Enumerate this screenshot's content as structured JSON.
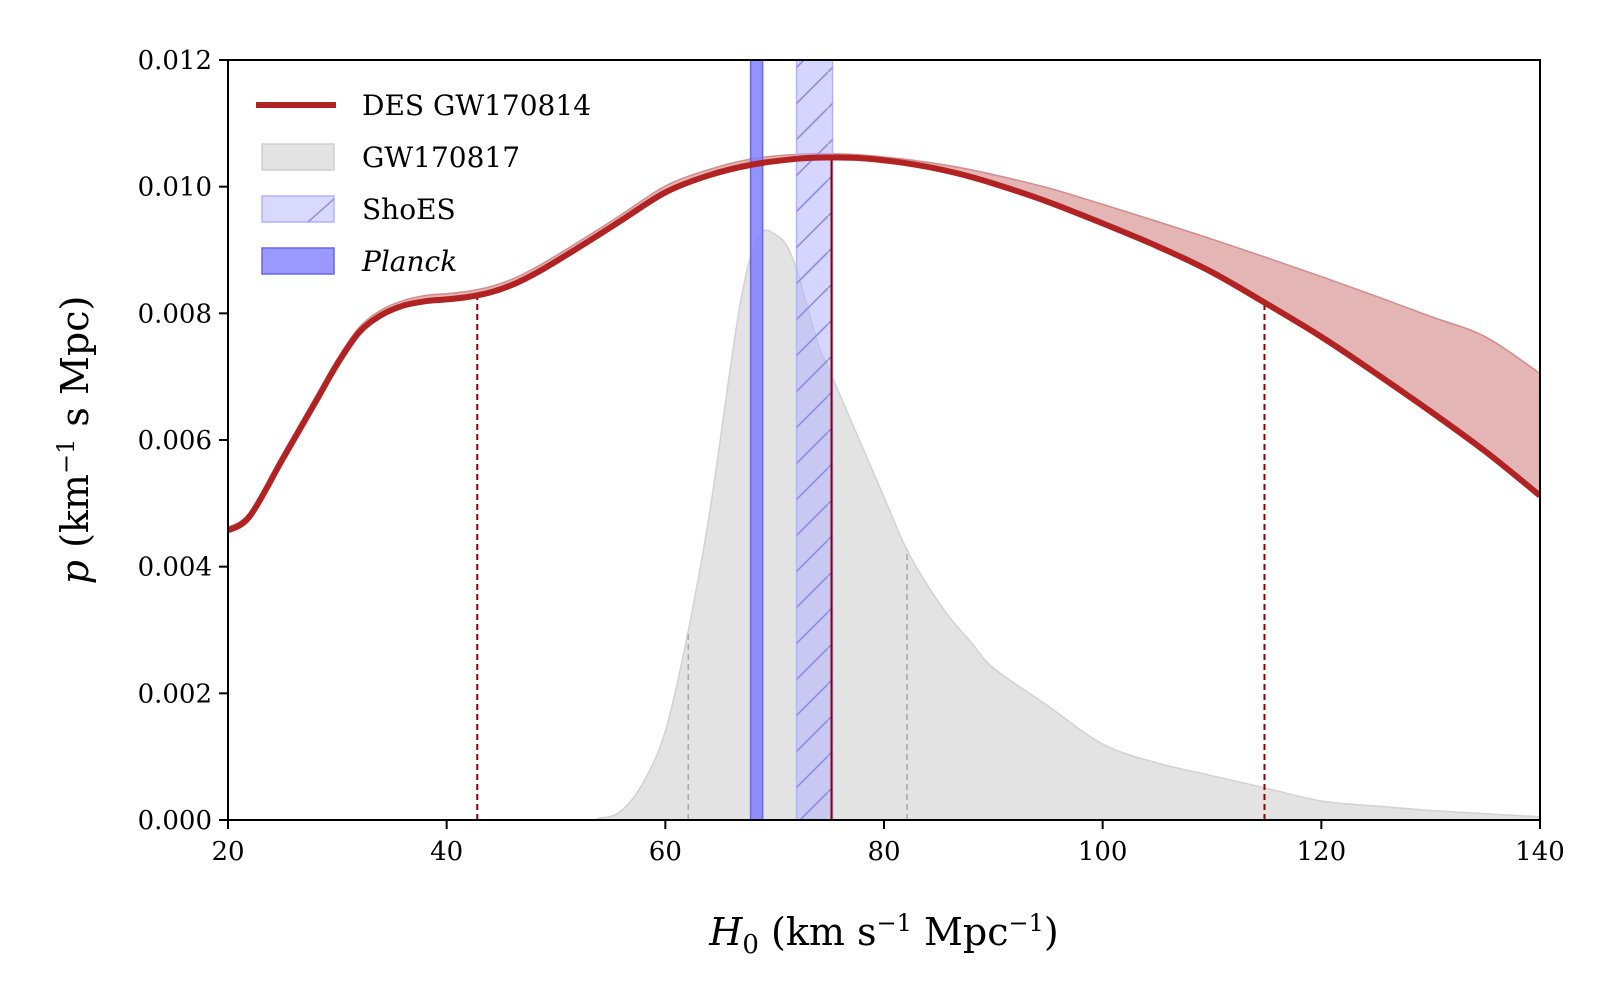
{
  "chart_data": {
    "type": "line",
    "xlabel": "H_0 (km s^-1 Mpc^-1)",
    "xlabel_parts": {
      "main": "H",
      "sub": "0",
      "open": " (km s",
      "exp1": "−1",
      "mid": " Mpc",
      "exp2": "−1",
      "close": ")"
    },
    "ylabel": "p (km^-1 s Mpc)",
    "ylabel_parts": {
      "main": "p",
      "open": " (km",
      "exp": "−1",
      "rest": " s Mpc)"
    },
    "xlim": [
      20,
      140
    ],
    "ylim": [
      0,
      0.012
    ],
    "xticks": [
      20,
      40,
      60,
      80,
      100,
      120,
      140
    ],
    "xtick_labels": [
      "20",
      "40",
      "60",
      "80",
      "100",
      "120",
      "140"
    ],
    "yticks": [
      0,
      0.002,
      0.004,
      0.006,
      0.008,
      0.01,
      0.012
    ],
    "ytick_labels": [
      "0.000",
      "0.002",
      "0.004",
      "0.006",
      "0.008",
      "0.010",
      "0.012"
    ],
    "grid": false,
    "legend_position": "top-left",
    "legend": [
      {
        "label": "DES GW170814",
        "kind": "line",
        "italic": false
      },
      {
        "label": "GW170817",
        "kind": "patch",
        "italic": false
      },
      {
        "label": "ShoES",
        "kind": "hatched-band",
        "italic": false
      },
      {
        "label": "Planck",
        "kind": "band",
        "italic": true
      }
    ],
    "series": [
      {
        "name": "DES GW170814",
        "color": "#b22222",
        "x": [
          20,
          22,
          25,
          28,
          30,
          32,
          34,
          36,
          38,
          40,
          42,
          44,
          46,
          48,
          50,
          53,
          56,
          60,
          64,
          68,
          72,
          75,
          78,
          82,
          86,
          90,
          95,
          100,
          105,
          110,
          115,
          120,
          125,
          130,
          135,
          140
        ],
        "y": [
          0.00457,
          0.0048,
          0.0057,
          0.0066,
          0.0072,
          0.0077,
          0.00797,
          0.00812,
          0.00819,
          0.00822,
          0.00826,
          0.00833,
          0.00845,
          0.00862,
          0.00882,
          0.00914,
          0.00947,
          0.00991,
          0.01018,
          0.01035,
          0.01044,
          0.01046,
          0.01045,
          0.01037,
          0.01024,
          0.01005,
          0.00976,
          0.00942,
          0.00906,
          0.00865,
          0.00815,
          0.00763,
          0.00705,
          0.00645,
          0.00582,
          0.00512
        ]
      },
      {
        "name": "DES GW170814 band",
        "color": "#b22222",
        "x": [
          20,
          22,
          25,
          28,
          30,
          32,
          34,
          36,
          38,
          40,
          42,
          44,
          46,
          48,
          50,
          53,
          56,
          60,
          64,
          68,
          72,
          75,
          78,
          82,
          86,
          90,
          95,
          100,
          105,
          110,
          115,
          120,
          125,
          130,
          135,
          140
        ],
        "y": [
          0.00457,
          0.0048,
          0.0057,
          0.0066,
          0.0072,
          0.0077,
          0.00797,
          0.00812,
          0.00819,
          0.00822,
          0.00826,
          0.00833,
          0.00845,
          0.00862,
          0.00882,
          0.00914,
          0.00947,
          0.00991,
          0.01018,
          0.01035,
          0.01044,
          0.01046,
          0.01045,
          0.01037,
          0.01024,
          0.01005,
          0.00976,
          0.00942,
          0.00906,
          0.00865,
          0.00815,
          0.00763,
          0.00705,
          0.00645,
          0.00582,
          0.00512
        ],
        "y_upper": [
          0.00462,
          0.00486,
          0.00578,
          0.00668,
          0.00728,
          0.00778,
          0.00805,
          0.0082,
          0.00828,
          0.00831,
          0.00835,
          0.00842,
          0.00854,
          0.00871,
          0.00891,
          0.00923,
          0.00956,
          0.01001,
          0.01027,
          0.01044,
          0.01051,
          0.01052,
          0.0105,
          0.01043,
          0.01033,
          0.01019,
          0.00998,
          0.00972,
          0.00945,
          0.00917,
          0.00888,
          0.00858,
          0.00827,
          0.00795,
          0.00763,
          0.00705
        ]
      },
      {
        "name": "GW170817",
        "color": "#e3e3e3",
        "x": [
          20,
          50,
          54,
          56,
          58,
          60,
          62,
          64,
          66,
          67,
          68,
          69,
          70,
          71,
          72,
          73,
          74,
          75,
          76,
          78,
          80,
          82,
          84,
          86,
          88,
          90,
          95,
          100,
          105,
          110,
          115,
          120,
          125,
          130,
          135,
          140
        ],
        "y": [
          0,
          0,
          3e-05,
          0.00015,
          0.0006,
          0.0014,
          0.0029,
          0.0048,
          0.0072,
          0.0083,
          0.009,
          0.0093,
          0.00925,
          0.0091,
          0.0087,
          0.0081,
          0.0075,
          0.0071,
          0.0067,
          0.0059,
          0.0051,
          0.0043,
          0.0037,
          0.0032,
          0.0028,
          0.0024,
          0.0018,
          0.0012,
          0.0009,
          0.0007,
          0.0005,
          0.0003,
          0.00022,
          0.00015,
          0.0001,
          5e-05
        ]
      }
    ],
    "bands": [
      {
        "name": "ShoES",
        "x_range": [
          72.0,
          75.3
        ],
        "color": "#b3b3ff",
        "hatched": true
      },
      {
        "name": "Planck",
        "x_range": [
          67.8,
          68.9
        ],
        "color": "#6666ee",
        "hatched": false
      }
    ],
    "vertical_lines": [
      {
        "series": "DES GW170814",
        "x": 75.2,
        "style": "solid"
      },
      {
        "series": "DES GW170814",
        "x": 42.8,
        "style": "dashed"
      },
      {
        "series": "DES GW170814",
        "x": 114.8,
        "style": "dashed"
      },
      {
        "series": "GW170817",
        "x": 62.1,
        "style": "dashed"
      },
      {
        "series": "GW170817",
        "x": 82.1,
        "style": "dashed"
      }
    ],
    "colors": {
      "des": "#b22222",
      "des_band": "#e3b5b5",
      "gw": "#e3e3e3",
      "gw_dash": "#aaaaaa",
      "shoes": "#b3b3ff",
      "planck": "#6666ee"
    }
  }
}
